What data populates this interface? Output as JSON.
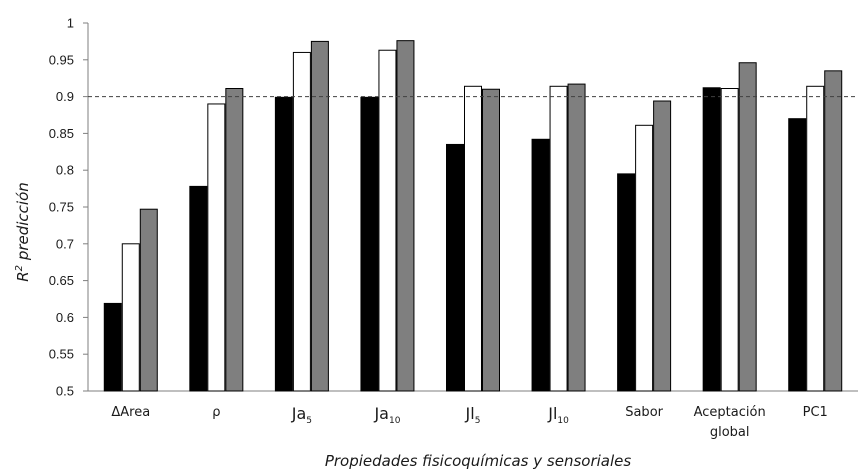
{
  "chart_data": {
    "type": "bar",
    "xlabel": "Propiedades fisicoquímicas y sensoriales",
    "ylabel": {
      "base": "R",
      "sup": "2",
      "rest": " predicción"
    },
    "ylim": [
      0.5,
      1.0
    ],
    "yticks": [
      "0.5",
      "0.55",
      "0.6",
      "0.65",
      "0.7",
      "0.75",
      "0.8",
      "0.85",
      "0.9",
      "0.95",
      "1"
    ],
    "ytick_values": [
      0.5,
      0.55,
      0.6,
      0.65,
      0.7,
      0.75,
      0.8,
      0.85,
      0.9,
      0.95,
      1.0
    ],
    "reference_line": 0.9,
    "grid": false,
    "legend": "none",
    "categories": [
      {
        "main": "ΔArea",
        "sub": ""
      },
      {
        "main": "ρ",
        "sub": ""
      },
      {
        "main": "Ja",
        "sub": "5"
      },
      {
        "main": "Ja",
        "sub": "10"
      },
      {
        "main": "Jl",
        "sub": "5"
      },
      {
        "main": "Jl",
        "sub": "10"
      },
      {
        "main": "Sabor",
        "sub": ""
      },
      {
        "main": "Aceptación",
        "sub": "",
        "line2": "global"
      },
      {
        "main": "PC1",
        "sub": ""
      }
    ],
    "series": [
      {
        "values": [
          0.619,
          0.778,
          0.899,
          0.899,
          0.835,
          0.842,
          0.795,
          0.912,
          0.87
        ],
        "color": "#000000"
      },
      {
        "values": [
          0.7,
          0.89,
          0.96,
          0.963,
          0.914,
          0.914,
          0.861,
          0.911,
          0.914
        ],
        "color": "#ffffff"
      },
      {
        "values": [
          0.747,
          0.911,
          0.975,
          0.976,
          0.91,
          0.917,
          0.894,
          0.946,
          0.935
        ],
        "color": "#7f7f7f"
      }
    ]
  }
}
